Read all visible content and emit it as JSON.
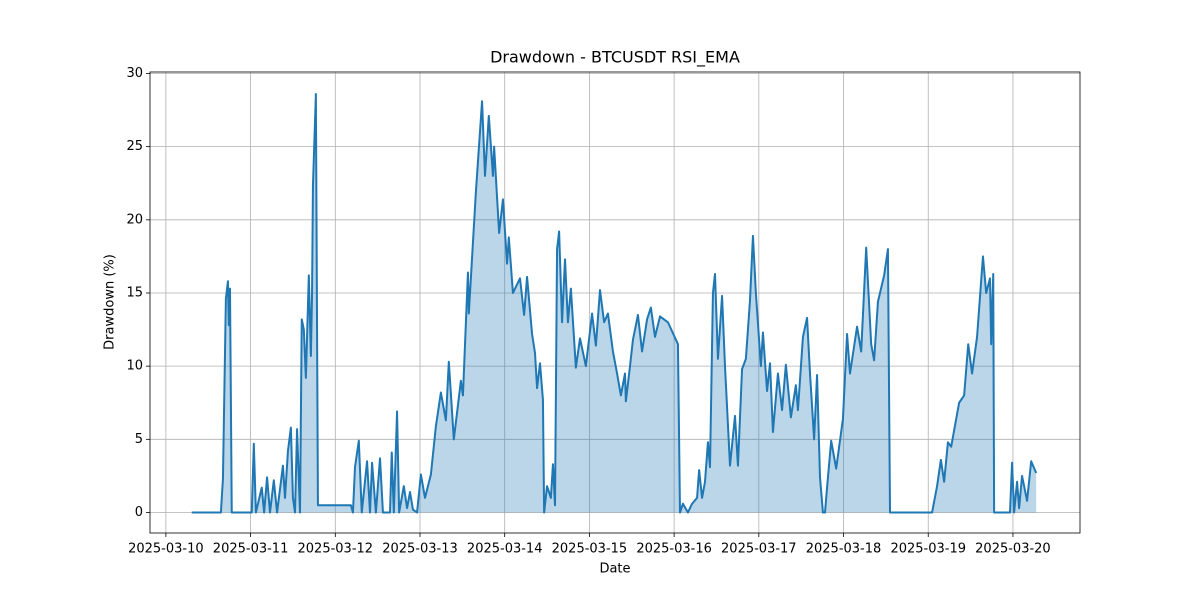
{
  "chart_data": {
    "type": "area",
    "title": "Drawdown - BTCUSDT RSI_EMA",
    "x_label": "Date",
    "y_label": "Drawdown (%)",
    "color": "#1f77b4",
    "fill_opacity": 0.3,
    "grid": true,
    "xlim": [
      "2025-03-09 19:30",
      "2025-03-20 19:00"
    ],
    "xticks": [
      "2025-03-10",
      "2025-03-11",
      "2025-03-12",
      "2025-03-13",
      "2025-03-14",
      "2025-03-15",
      "2025-03-16",
      "2025-03-17",
      "2025-03-18",
      "2025-03-19",
      "2025-03-20"
    ],
    "ylim": [
      -1.4,
      30.1
    ],
    "yticks": [
      0,
      5,
      10,
      15,
      20,
      25,
      30
    ],
    "x": [
      "2025-03-10 07:20",
      "2025-03-10 15:35",
      "2025-03-10 16:10",
      "2025-03-10 17:00",
      "2025-03-10 17:35",
      "2025-03-10 17:50",
      "2025-03-10 18:10",
      "2025-03-10 18:40",
      "2025-03-11 00:20",
      "2025-03-11 00:55",
      "2025-03-11 01:30",
      "2025-03-11 03:10",
      "2025-03-11 03:50",
      "2025-03-11 04:40",
      "2025-03-11 05:30",
      "2025-03-11 06:35",
      "2025-03-11 07:30",
      "2025-03-11 09:10",
      "2025-03-11 09:45",
      "2025-03-11 10:35",
      "2025-03-11 11:25",
      "2025-03-11 12:00",
      "2025-03-11 12:35",
      "2025-03-11 13:10",
      "2025-03-11 14:00",
      "2025-03-11 14:30",
      "2025-03-11 15:05",
      "2025-03-11 15:40",
      "2025-03-11 16:30",
      "2025-03-11 17:05",
      "2025-03-11 17:25",
      "2025-03-11 17:40",
      "2025-03-11 18:30",
      "2025-03-11 19:05",
      "2025-03-12 04:25",
      "2025-03-12 05:00",
      "2025-03-12 05:35",
      "2025-03-12 06:40",
      "2025-03-12 07:30",
      "2025-03-12 09:00",
      "2025-03-12 09:50",
      "2025-03-12 10:25",
      "2025-03-12 11:30",
      "2025-03-12 12:40",
      "2025-03-12 13:30",
      "2025-03-12 15:30",
      "2025-03-12 16:00",
      "2025-03-12 16:35",
      "2025-03-12 17:30",
      "2025-03-12 18:05",
      "2025-03-12 19:25",
      "2025-03-12 20:20",
      "2025-03-12 21:10",
      "2025-03-12 22:00",
      "2025-03-12 23:10",
      "2025-03-13 00:15",
      "2025-03-13 01:25",
      "2025-03-13 03:05",
      "2025-03-13 04:30",
      "2025-03-13 05:55",
      "2025-03-13 07:20",
      "2025-03-13 08:10",
      "2025-03-13 09:35",
      "2025-03-13 11:35",
      "2025-03-13 12:10",
      "2025-03-13 13:35",
      "2025-03-13 13:50",
      "2025-03-13 15:50",
      "2025-03-13 17:35",
      "2025-03-13 18:25",
      "2025-03-13 19:30",
      "2025-03-13 20:40",
      "2025-03-13 21:00",
      "2025-03-13 22:25",
      "2025-03-13 23:30",
      "2025-03-14 00:40",
      "2025-03-14 01:10",
      "2025-03-14 02:20",
      "2025-03-14 04:20",
      "2025-03-14 05:30",
      "2025-03-14 06:20",
      "2025-03-14 07:45",
      "2025-03-14 08:35",
      "2025-03-14 09:10",
      "2025-03-14 10:00",
      "2025-03-14 10:50",
      "2025-03-14 11:10",
      "2025-03-14 12:00",
      "2025-03-14 13:05",
      "2025-03-14 13:40",
      "2025-03-14 14:15",
      "2025-03-14 14:50",
      "2025-03-14 15:25",
      "2025-03-14 16:15",
      "2025-03-14 17:05",
      "2025-03-14 17:55",
      "2025-03-14 18:45",
      "2025-03-14 20:10",
      "2025-03-14 21:20",
      "2025-03-14 23:00",
      "2025-03-15 00:45",
      "2025-03-15 01:50",
      "2025-03-15 03:00",
      "2025-03-15 04:10",
      "2025-03-15 05:15",
      "2025-03-15 06:40",
      "2025-03-15 07:50",
      "2025-03-15 08:55",
      "2025-03-15 10:05",
      "2025-03-15 10:20",
      "2025-03-15 11:30",
      "2025-03-15 12:20",
      "2025-03-15 13:45",
      "2025-03-15 14:55",
      "2025-03-15 16:20",
      "2025-03-15 17:25",
      "2025-03-15 18:35",
      "2025-03-15 20:00",
      "2025-03-15 22:15",
      "2025-03-16 01:05",
      "2025-03-16 01:40",
      "2025-03-16 02:30",
      "2025-03-16 03:55",
      "2025-03-16 05:05",
      "2025-03-16 06:30",
      "2025-03-16 07:05",
      "2025-03-16 07:55",
      "2025-03-16 08:45",
      "2025-03-16 09:35",
      "2025-03-16 10:10",
      "2025-03-16 11:00",
      "2025-03-16 11:35",
      "2025-03-16 12:25",
      "2025-03-16 13:35",
      "2025-03-16 14:25",
      "2025-03-16 15:50",
      "2025-03-16 17:15",
      "2025-03-16 18:05",
      "2025-03-16 19:15",
      "2025-03-16 20:20",
      "2025-03-16 21:30",
      "2025-03-16 22:20",
      "2025-03-16 23:10",
      "2025-03-17 00:35",
      "2025-03-17 01:10",
      "2025-03-17 02:20",
      "2025-03-17 03:10",
      "2025-03-17 04:00",
      "2025-03-17 05:25",
      "2025-03-17 06:35",
      "2025-03-17 07:40",
      "2025-03-17 09:05",
      "2025-03-17 10:30",
      "2025-03-17 11:05",
      "2025-03-17 12:30",
      "2025-03-17 13:40",
      "2025-03-17 14:30",
      "2025-03-17 15:40",
      "2025-03-17 16:30",
      "2025-03-17 17:20",
      "2025-03-17 18:10",
      "2025-03-17 18:45",
      "2025-03-17 19:20",
      "2025-03-17 20:30",
      "2025-03-17 21:55",
      "2025-03-17 23:50",
      "2025-03-18 01:00",
      "2025-03-18 01:50",
      "2025-03-18 03:50",
      "2025-03-18 05:00",
      "2025-03-18 06:25",
      "2025-03-18 07:50",
      "2025-03-18 08:40",
      "2025-03-18 09:45",
      "2025-03-18 11:30",
      "2025-03-18 12:35",
      "2025-03-18 13:10",
      "2025-03-19 01:05",
      "2025-03-19 02:30",
      "2025-03-19 03:35",
      "2025-03-19 04:30",
      "2025-03-19 05:35",
      "2025-03-19 06:30",
      "2025-03-19 08:45",
      "2025-03-19 10:10",
      "2025-03-19 11:20",
      "2025-03-19 12:25",
      "2025-03-19 13:50",
      "2025-03-19 15:30",
      "2025-03-19 16:25",
      "2025-03-19 17:30",
      "2025-03-19 17:50",
      "2025-03-19 18:25",
      "2025-03-19 18:40",
      "2025-03-19 23:10",
      "2025-03-19 23:45",
      "2025-03-20 00:20",
      "2025-03-20 01:10",
      "2025-03-20 01:45",
      "2025-03-20 02:35",
      "2025-03-20 04:00",
      "2025-03-20 05:10",
      "2025-03-20 06:35"
    ],
    "values": [
      0,
      0,
      2.3,
      14.6,
      15.8,
      12.8,
      15.3,
      0,
      0,
      4.7,
      0,
      1.7,
      0,
      2.4,
      0,
      2.2,
      0,
      3.2,
      1.0,
      4.2,
      5.8,
      1.0,
      0,
      5.7,
      0,
      13.2,
      12.5,
      9.2,
      16.2,
      10.7,
      15.0,
      22.3,
      28.6,
      0.5,
      0.5,
      0,
      3.1,
      4.9,
      0,
      3.5,
      0,
      3.4,
      0,
      3.7,
      0,
      0,
      4.1,
      0,
      6.9,
      0,
      1.8,
      0.3,
      1.4,
      0.2,
      0,
      2.6,
      1.0,
      2.6,
      5.9,
      8.2,
      6.3,
      10.3,
      5.0,
      9.0,
      8.0,
      16.4,
      13.6,
      21.9,
      28.1,
      23.0,
      27.1,
      23.0,
      25.0,
      19.1,
      21.4,
      17.0,
      18.8,
      15.0,
      16.0,
      13.5,
      16.1,
      12.2,
      10.9,
      8.5,
      10.2,
      7.7,
      0,
      1.8,
      1.0,
      3.3,
      0.5,
      18.0,
      19.2,
      13.0,
      17.3,
      13.0,
      15.3,
      9.9,
      11.9,
      10.0,
      13.6,
      11.4,
      15.2,
      13.0,
      13.6,
      11.0,
      9.5,
      8.0,
      9.5,
      7.6,
      10.0,
      11.8,
      13.5,
      11.0,
      13.2,
      14.0,
      12.0,
      13.4,
      13.0,
      11.5,
      0,
      0.6,
      0,
      0.6,
      1.0,
      2.9,
      1.0,
      2.1,
      4.8,
      3.1,
      15.0,
      16.3,
      10.5,
      14.8,
      10.0,
      3.2,
      6.6,
      3.2,
      9.8,
      10.5,
      14.5,
      18.9,
      15.0,
      10.0,
      12.3,
      8.3,
      10.2,
      5.5,
      9.5,
      7.0,
      10.1,
      6.5,
      8.7,
      7.0,
      12.0,
      13.3,
      9.5,
      5.0,
      9.4,
      2.4,
      0,
      0,
      1.7,
      4.9,
      3.0,
      6.4,
      12.2,
      9.5,
      12.7,
      11.0,
      18.1,
      11.5,
      10.4,
      14.4,
      16.2,
      18.0,
      0,
      0,
      1.8,
      3.6,
      2.1,
      4.8,
      4.5,
      7.5,
      8.0,
      11.5,
      9.5,
      12.0,
      17.5,
      15.0,
      16.0,
      11.5,
      16.3,
      0,
      0,
      3.4,
      0,
      2.1,
      0.3,
      2.5,
      0.8,
      3.5,
      2.7
    ]
  }
}
